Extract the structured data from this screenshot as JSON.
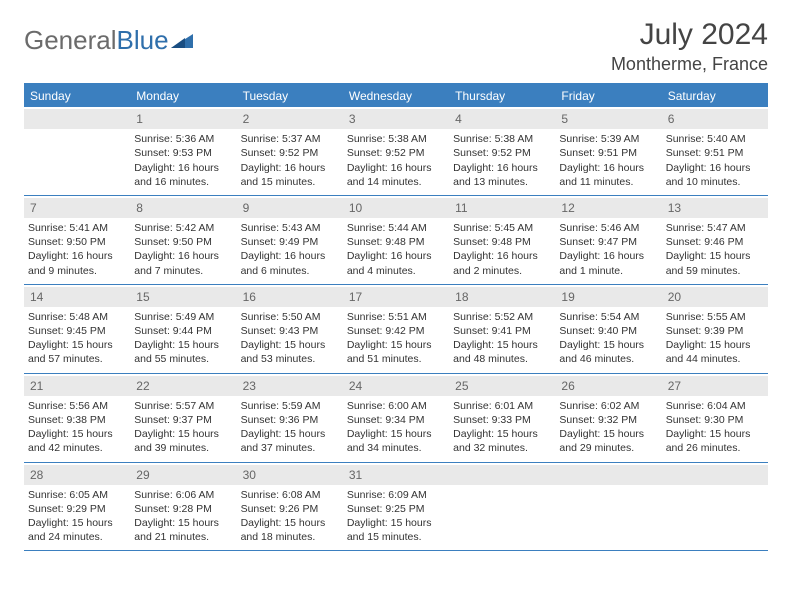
{
  "brand": {
    "part1": "General",
    "part2": "Blue"
  },
  "title": "July 2024",
  "location": "Montherme, France",
  "colors": {
    "header_bg": "#3b7fbf",
    "header_text": "#ffffff",
    "daynum_bg": "#e9e9e9",
    "border": "#3b7fbf",
    "text": "#333333"
  },
  "dow": [
    "Sunday",
    "Monday",
    "Tuesday",
    "Wednesday",
    "Thursday",
    "Friday",
    "Saturday"
  ],
  "weeks": [
    [
      {
        "n": "",
        "sr": "",
        "ss": "",
        "dl": ""
      },
      {
        "n": "1",
        "sr": "5:36 AM",
        "ss": "9:53 PM",
        "dl": "16 hours and 16 minutes."
      },
      {
        "n": "2",
        "sr": "5:37 AM",
        "ss": "9:52 PM",
        "dl": "16 hours and 15 minutes."
      },
      {
        "n": "3",
        "sr": "5:38 AM",
        "ss": "9:52 PM",
        "dl": "16 hours and 14 minutes."
      },
      {
        "n": "4",
        "sr": "5:38 AM",
        "ss": "9:52 PM",
        "dl": "16 hours and 13 minutes."
      },
      {
        "n": "5",
        "sr": "5:39 AM",
        "ss": "9:51 PM",
        "dl": "16 hours and 11 minutes."
      },
      {
        "n": "6",
        "sr": "5:40 AM",
        "ss": "9:51 PM",
        "dl": "16 hours and 10 minutes."
      }
    ],
    [
      {
        "n": "7",
        "sr": "5:41 AM",
        "ss": "9:50 PM",
        "dl": "16 hours and 9 minutes."
      },
      {
        "n": "8",
        "sr": "5:42 AM",
        "ss": "9:50 PM",
        "dl": "16 hours and 7 minutes."
      },
      {
        "n": "9",
        "sr": "5:43 AM",
        "ss": "9:49 PM",
        "dl": "16 hours and 6 minutes."
      },
      {
        "n": "10",
        "sr": "5:44 AM",
        "ss": "9:48 PM",
        "dl": "16 hours and 4 minutes."
      },
      {
        "n": "11",
        "sr": "5:45 AM",
        "ss": "9:48 PM",
        "dl": "16 hours and 2 minutes."
      },
      {
        "n": "12",
        "sr": "5:46 AM",
        "ss": "9:47 PM",
        "dl": "16 hours and 1 minute."
      },
      {
        "n": "13",
        "sr": "5:47 AM",
        "ss": "9:46 PM",
        "dl": "15 hours and 59 minutes."
      }
    ],
    [
      {
        "n": "14",
        "sr": "5:48 AM",
        "ss": "9:45 PM",
        "dl": "15 hours and 57 minutes."
      },
      {
        "n": "15",
        "sr": "5:49 AM",
        "ss": "9:44 PM",
        "dl": "15 hours and 55 minutes."
      },
      {
        "n": "16",
        "sr": "5:50 AM",
        "ss": "9:43 PM",
        "dl": "15 hours and 53 minutes."
      },
      {
        "n": "17",
        "sr": "5:51 AM",
        "ss": "9:42 PM",
        "dl": "15 hours and 51 minutes."
      },
      {
        "n": "18",
        "sr": "5:52 AM",
        "ss": "9:41 PM",
        "dl": "15 hours and 48 minutes."
      },
      {
        "n": "19",
        "sr": "5:54 AM",
        "ss": "9:40 PM",
        "dl": "15 hours and 46 minutes."
      },
      {
        "n": "20",
        "sr": "5:55 AM",
        "ss": "9:39 PM",
        "dl": "15 hours and 44 minutes."
      }
    ],
    [
      {
        "n": "21",
        "sr": "5:56 AM",
        "ss": "9:38 PM",
        "dl": "15 hours and 42 minutes."
      },
      {
        "n": "22",
        "sr": "5:57 AM",
        "ss": "9:37 PM",
        "dl": "15 hours and 39 minutes."
      },
      {
        "n": "23",
        "sr": "5:59 AM",
        "ss": "9:36 PM",
        "dl": "15 hours and 37 minutes."
      },
      {
        "n": "24",
        "sr": "6:00 AM",
        "ss": "9:34 PM",
        "dl": "15 hours and 34 minutes."
      },
      {
        "n": "25",
        "sr": "6:01 AM",
        "ss": "9:33 PM",
        "dl": "15 hours and 32 minutes."
      },
      {
        "n": "26",
        "sr": "6:02 AM",
        "ss": "9:32 PM",
        "dl": "15 hours and 29 minutes."
      },
      {
        "n": "27",
        "sr": "6:04 AM",
        "ss": "9:30 PM",
        "dl": "15 hours and 26 minutes."
      }
    ],
    [
      {
        "n": "28",
        "sr": "6:05 AM",
        "ss": "9:29 PM",
        "dl": "15 hours and 24 minutes."
      },
      {
        "n": "29",
        "sr": "6:06 AM",
        "ss": "9:28 PM",
        "dl": "15 hours and 21 minutes."
      },
      {
        "n": "30",
        "sr": "6:08 AM",
        "ss": "9:26 PM",
        "dl": "15 hours and 18 minutes."
      },
      {
        "n": "31",
        "sr": "6:09 AM",
        "ss": "9:25 PM",
        "dl": "15 hours and 15 minutes."
      },
      {
        "n": "",
        "sr": "",
        "ss": "",
        "dl": ""
      },
      {
        "n": "",
        "sr": "",
        "ss": "",
        "dl": ""
      },
      {
        "n": "",
        "sr": "",
        "ss": "",
        "dl": ""
      }
    ]
  ]
}
